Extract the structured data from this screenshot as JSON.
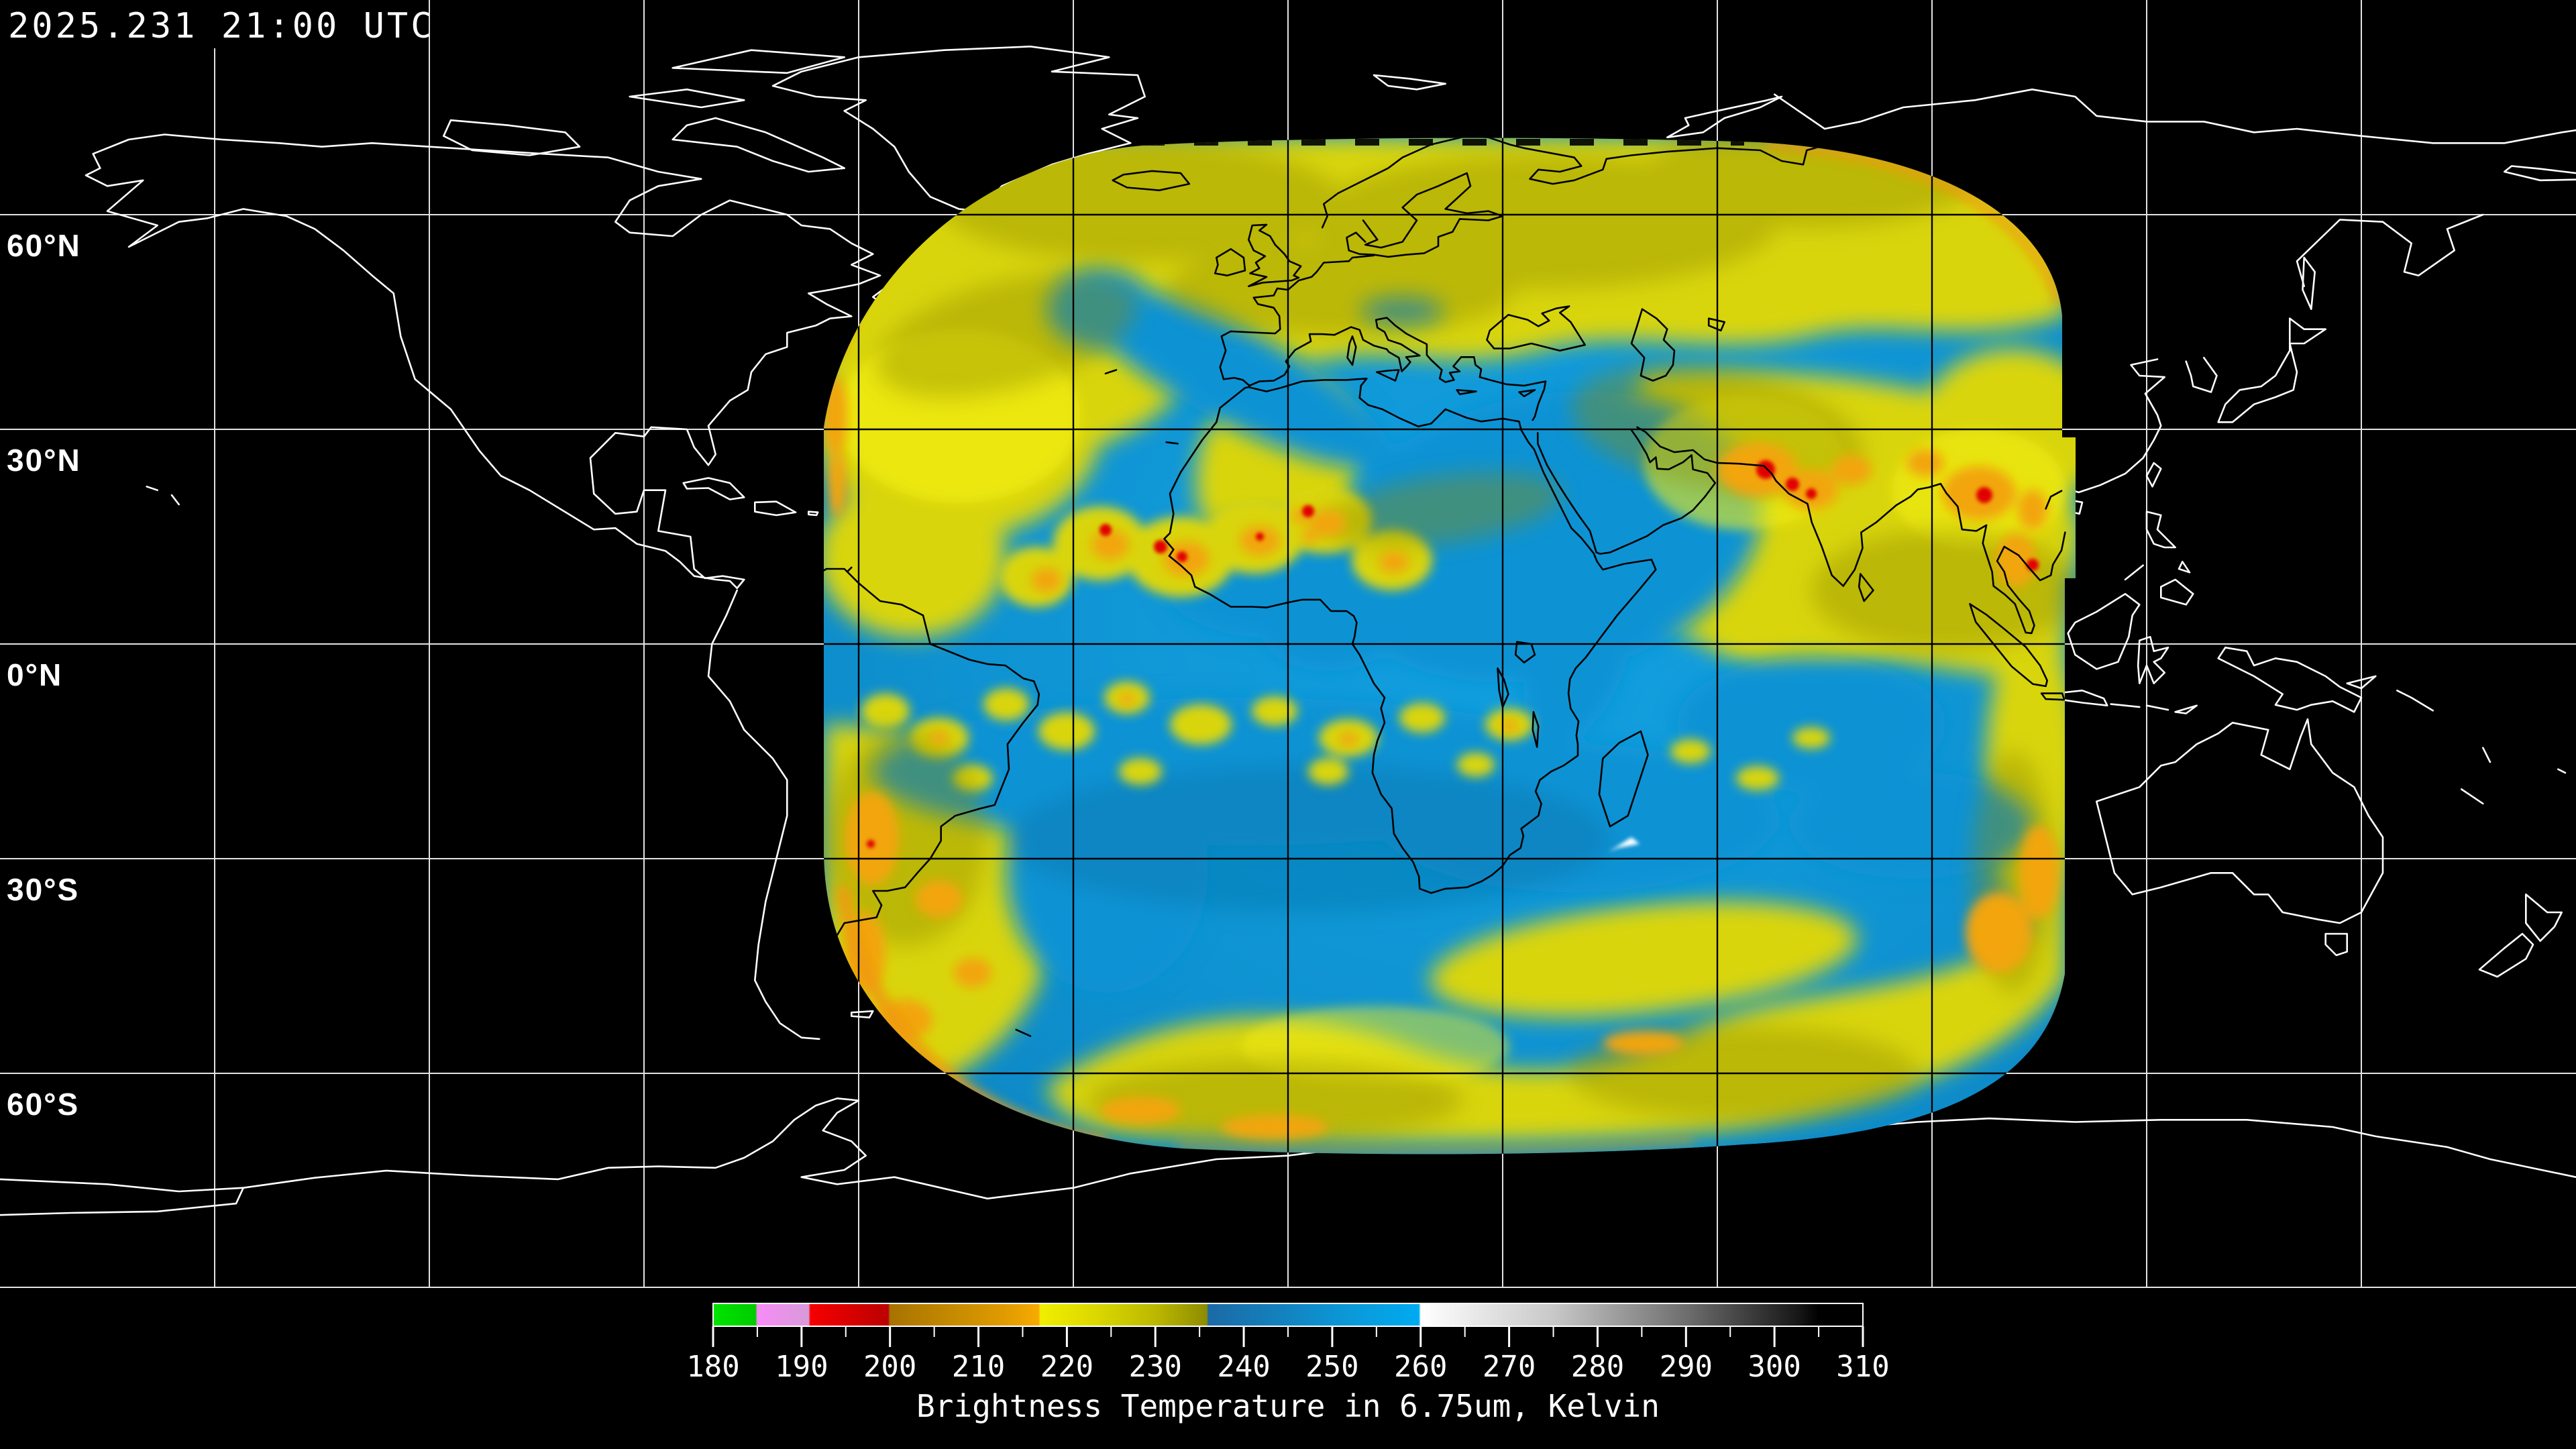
{
  "header": {
    "timestamp": "2025.231 21:00 UTC"
  },
  "map": {
    "background_color": "#000000",
    "latitude_labels": [
      {
        "label": "60°N",
        "lat": 60
      },
      {
        "label": "30°N",
        "lat": 30
      },
      {
        "label": "0°N",
        "lat": 0
      },
      {
        "label": "30°S",
        "lat": -30
      },
      {
        "label": "60°S",
        "lat": -60
      }
    ],
    "graticule": {
      "lon_step_deg": 30,
      "lat_step_deg": 30,
      "line_color": "#e2e2e2",
      "overlay_line_color": "#000000"
    },
    "coast_color_outside_swath": "#ffffff",
    "coast_color_inside_swath": "#000000",
    "swath_palette": {
      "blue": "#0f9ad8",
      "yellow": "#d9d511",
      "olive": "#8f8c06",
      "orange": "#f2a50c",
      "red": "#e10000",
      "white_spot": "#ffffff"
    }
  },
  "colorbar": {
    "title": "Brightness Temperature in 6.75um, Kelvin",
    "unit": "Kelvin",
    "min": 180,
    "max": 310,
    "major_ticks": [
      180,
      190,
      200,
      210,
      220,
      230,
      240,
      250,
      260,
      270,
      280,
      290,
      300,
      310
    ],
    "minor_ticks": [
      185,
      195,
      205,
      215,
      225,
      235,
      245,
      255,
      265,
      275,
      285,
      295,
      305
    ],
    "stops": [
      {
        "value": 180,
        "color": "#00e400"
      },
      {
        "value": 184.8,
        "color": "#00cc00"
      },
      {
        "value": 185,
        "color": "#f78cf7"
      },
      {
        "value": 190.8,
        "color": "#d89ad8"
      },
      {
        "value": 191,
        "color": "#f50000"
      },
      {
        "value": 199.8,
        "color": "#bc0000"
      },
      {
        "value": 200,
        "color": "#a87200"
      },
      {
        "value": 207,
        "color": "#c58a00"
      },
      {
        "value": 213,
        "color": "#e09b00"
      },
      {
        "value": 216.8,
        "color": "#f8aa00"
      },
      {
        "value": 217,
        "color": "#f0ee00"
      },
      {
        "value": 223,
        "color": "#ddd900"
      },
      {
        "value": 230,
        "color": "#bcb800"
      },
      {
        "value": 235.8,
        "color": "#8e8c00"
      },
      {
        "value": 236,
        "color": "#1b6aa6"
      },
      {
        "value": 244,
        "color": "#1381bd"
      },
      {
        "value": 252,
        "color": "#0b99d9"
      },
      {
        "value": 259.8,
        "color": "#00aaf0"
      },
      {
        "value": 260,
        "color": "#ffffff"
      },
      {
        "value": 275,
        "color": "#c8c8c8"
      },
      {
        "value": 290,
        "color": "#6e6e6e"
      },
      {
        "value": 303,
        "color": "#151515"
      },
      {
        "value": 305,
        "color": "#000000"
      },
      {
        "value": 310,
        "color": "#000000"
      }
    ]
  }
}
